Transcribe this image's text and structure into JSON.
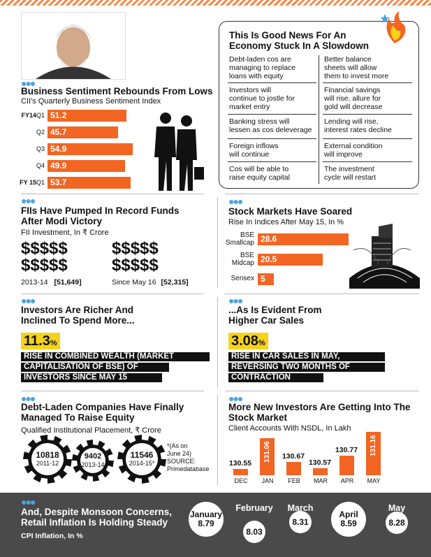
{
  "colors": {
    "accent": "#f26522",
    "yellow": "#f6d31a",
    "dark": "#4a4a4a",
    "blue": "#4aa3df"
  },
  "sentiment": {
    "title": "Business Sentiment Rebounds From Lows",
    "subtitle": "CII's Quarterly Business Sentiment Index",
    "chart_data": {
      "type": "bar",
      "orientation": "horizontal",
      "categories": [
        "FY14 Q1",
        "Q2",
        "Q3",
        "Q4",
        "FY 15 Q1"
      ],
      "year_labels": [
        "FY14",
        "",
        "",
        "",
        "FY 15"
      ],
      "quarter_labels": [
        "Q1",
        "Q2",
        "Q3",
        "Q4",
        "Q1"
      ],
      "values": [
        51.2,
        45.7,
        54.9,
        49.9,
        53.7
      ],
      "value_labels": [
        "51.2",
        "45.7",
        "54.9",
        "49.9",
        "53.7"
      ],
      "title": "Business Sentiment Rebounds From Lows",
      "xlim": [
        0,
        60
      ]
    }
  },
  "news": {
    "title_line1": "This Is Good News For An",
    "title_line2": "Economy Stuck In A Slowdown",
    "rows": [
      {
        "left": [
          "Debt-laden cos are",
          "managing to replace",
          "loans with equity"
        ],
        "right": [
          "Better balance",
          "sheets will allow",
          "them to invest more"
        ]
      },
      {
        "left": [
          "Investors will",
          "continue to jostle for",
          "market entry"
        ],
        "right": [
          "Financial savings",
          "will rise, allure for",
          "gold will decrease"
        ]
      },
      {
        "left": [
          "Banking stress will",
          "lessen as cos deleverage"
        ],
        "right": [
          "Lending will rise,",
          "interest rates decline"
        ]
      },
      {
        "left": [
          "Foreign inflows",
          "will continue"
        ],
        "right": [
          "External condition",
          "will improve"
        ]
      },
      {
        "left": [
          "Cos will be able to",
          "raise equity capital"
        ],
        "right": [
          "The investment",
          "cycle will restart"
        ]
      }
    ]
  },
  "fii": {
    "title_line1": "FIIs Have Pumped In Record Funds",
    "title_line2": "After Modi Victory",
    "subtitle": "FII Investment, In ₹ Crore",
    "dollar_row": "$$$$$",
    "items": [
      {
        "label": "2013-14",
        "value": "[51,649]"
      },
      {
        "label": "Since May 16",
        "value": "[52,315]"
      }
    ]
  },
  "stocks": {
    "title": "Stock Markets Have Soared",
    "subtitle": "Rise In Indices After May 15, In %",
    "chart_data": {
      "type": "bar",
      "orientation": "horizontal",
      "categories": [
        "BSE Smallcap",
        "BSE Midcap",
        "Sensex"
      ],
      "label_lines": [
        [
          "BSE",
          "Smallcap"
        ],
        [
          "BSE",
          "Midcap"
        ],
        [
          "Sensex"
        ]
      ],
      "values": [
        28.6,
        20.5,
        5
      ],
      "value_labels": [
        "28.6",
        "20.5",
        "5"
      ],
      "title": "Stock Markets Have Soared",
      "xlim": [
        0,
        30
      ]
    }
  },
  "investors": {
    "title_line1": "Investors Are Richer And",
    "title_line2": "Inclined To Spend More...",
    "pct": "11.3",
    "pct_sign": "%",
    "lines": [
      "RISE IN COMBINED WEALTH (MARKET",
      "CAPITALISATION OF BSE) OF",
      "INVESTORS SINCE MAY 15"
    ]
  },
  "cars": {
    "title_line1": "...As Is Evident From",
    "title_line2": "Higher Car Sales",
    "pct": "3.08",
    "pct_sign": "%",
    "lines": [
      "RISE IN CAR SALES IN MAY,",
      "REVERSING TWO MONTHS OF",
      "CONTRACTION"
    ]
  },
  "qip": {
    "title_line1": "Debt-Laden Companies Have Finally",
    "title_line2": "Managed To Raise Equity",
    "subtitle": "Qualified Institutional Placement, ₹ Crore",
    "gears": [
      {
        "value": "10818",
        "label": "2011-12"
      },
      {
        "value": "9402",
        "label": "2013-14"
      },
      {
        "value": "11546",
        "label": "2014-15*"
      }
    ],
    "note": [
      "*(As on",
      "June 24)",
      "SOURCE:",
      "Primedatabase"
    ]
  },
  "nsdl": {
    "title_line1": "More New Investors Are Getting Into The",
    "title_line2": "Stock Market",
    "subtitle": "Client Accounts With NSDL, In Lakh",
    "chart_data": {
      "type": "bar",
      "categories": [
        "DEC",
        "JAN",
        "FEB",
        "MAR",
        "APR",
        "MAY"
      ],
      "values": [
        130.55,
        131.06,
        130.67,
        130.57,
        130.77,
        131.16
      ],
      "value_labels": [
        "130.55",
        "131.06",
        "130.67",
        "130.57",
        "130.77",
        "131.16"
      ],
      "title": "More New Investors Are Getting Into The Stock Market",
      "ylim": [
        130.45,
        131.2
      ]
    }
  },
  "inflation": {
    "title_line1": "And, Despite Monsoon Concerns,",
    "title_line2": "Retail Inflation Is Holding Steady",
    "subtitle": "CPI Inflation, In %",
    "chart_data": {
      "type": "line",
      "categories": [
        "January",
        "February",
        "March",
        "April",
        "May"
      ],
      "values": [
        8.79,
        8.03,
        8.31,
        8.59,
        8.28
      ],
      "value_labels": [
        "8.79",
        "8.03",
        "8.31",
        "8.59",
        "8.28"
      ],
      "title": "And, Despite Monsoon Concerns, Retail Inflation Is Holding Steady"
    }
  }
}
